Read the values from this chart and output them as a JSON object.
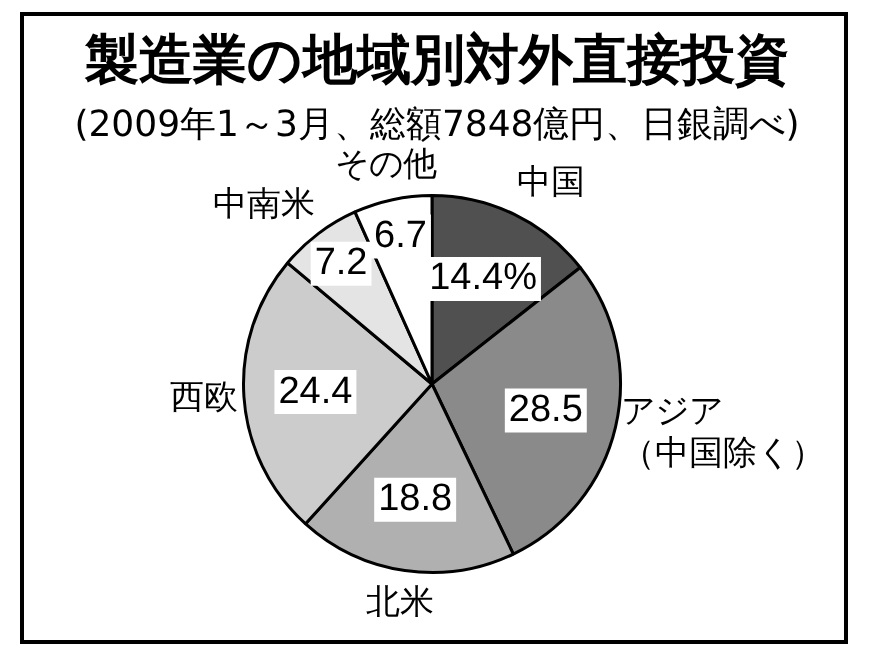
{
  "chart_data": {
    "type": "pie",
    "title": "製造業の地域別対外直接投資",
    "subtitle": "(2009年1～3月、総額7848億円、日銀調べ)",
    "categories": [
      "中国",
      "アジア（中国除く）",
      "北米",
      "西欧",
      "中南米",
      "その他"
    ],
    "values": [
      14.4,
      28.5,
      18.8,
      24.4,
      7.2,
      6.7
    ],
    "value_labels": [
      "14.4%",
      "28.5",
      "18.8",
      "24.4",
      "7.2",
      "6.7"
    ],
    "colors": [
      "#505050",
      "#8a8a8a",
      "#b0b0b0",
      "#cccccc",
      "#e4e4e4",
      "#ffffff"
    ],
    "legend": false
  }
}
